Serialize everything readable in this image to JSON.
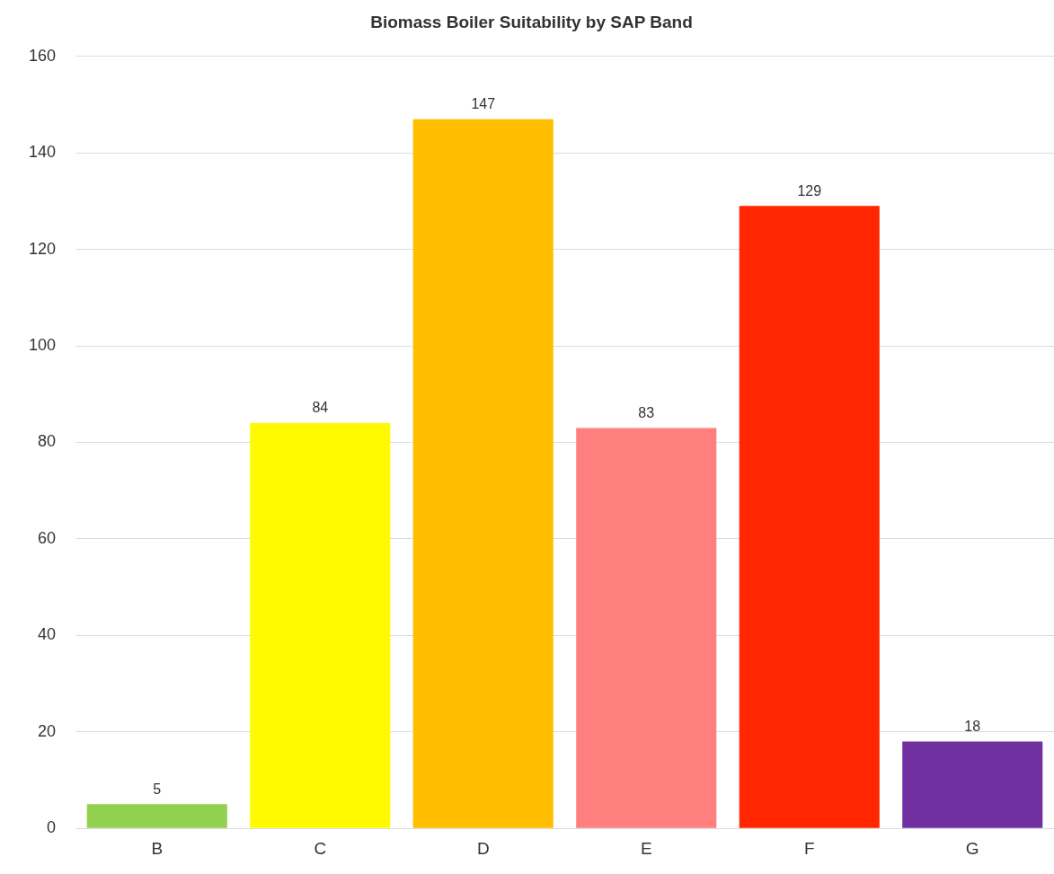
{
  "chart_data": {
    "type": "bar",
    "title": "Biomass Boiler Suitability by SAP Band",
    "categories": [
      "B",
      "C",
      "D",
      "E",
      "F",
      "G"
    ],
    "values": [
      5,
      84,
      147,
      83,
      129,
      18
    ],
    "colors": [
      "#92d050",
      "#fffa00",
      "#ffbf00",
      "#ff7f7f",
      "#ff2600",
      "#7030a0"
    ],
    "ylim": [
      0,
      160
    ],
    "yticks": [
      0,
      20,
      40,
      60,
      80,
      100,
      120,
      140,
      160
    ],
    "grid": "y",
    "data_labels": true,
    "legend": false
  }
}
